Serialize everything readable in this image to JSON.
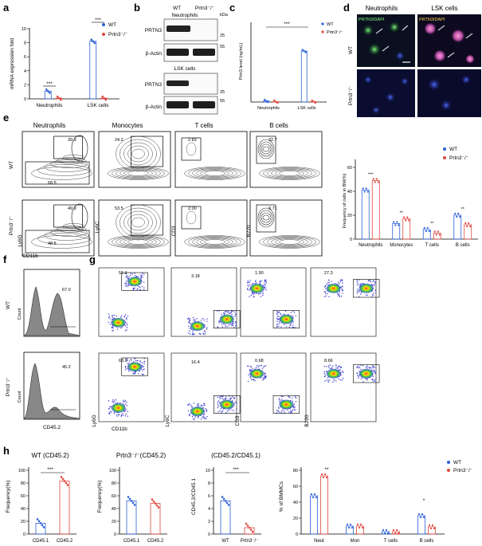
{
  "panels": {
    "a": {
      "label": "a",
      "ylabel": "mRNA expression fold",
      "yticks": [
        "0",
        "2",
        "4",
        "6",
        "8",
        "10"
      ],
      "categories": [
        "Neutrophils",
        "LSK cells"
      ],
      "legend": [
        "WT",
        "Prtn3⁻/⁻"
      ],
      "sig": [
        "***",
        "***"
      ]
    },
    "b": {
      "label": "b",
      "col_wt": "WT",
      "col_ko": "Prtn3⁻/⁻",
      "kda": "kDa",
      "group1": "Neutrophils",
      "group2": "LSK cells",
      "rows": [
        "PRTN3",
        "β-Actin",
        "PRTN3",
        "β-Actin"
      ],
      "markers": [
        "25",
        "55",
        "25",
        "55"
      ]
    },
    "c": {
      "label": "c",
      "ylabel": "Prtn3 level (ng/mL)",
      "categories": [
        "Neutrophils",
        "LSK cells"
      ],
      "legend": [
        "WT",
        "Prtn3⁻/⁻"
      ],
      "sig": "***"
    },
    "d": {
      "label": "d",
      "col1": "Neutrophils",
      "col2": "LSK cells",
      "row1": "WT",
      "row2": "Prtn3⁻/⁻",
      "stain1": "PRTN3/DAPI",
      "stain2": "PRTN3/DAPI"
    },
    "e": {
      "label": "e",
      "cols": [
        "Neutrophils",
        "Monocytes",
        "T cells",
        "B cells"
      ],
      "rows": [
        "WT",
        "Prtn3⁻/⁻"
      ],
      "wt_gates": [
        "39.9",
        "68.5",
        "24.2",
        "2.83",
        "32.7"
      ],
      "ko_gates": [
        "49.9",
        "48.5",
        "53.5",
        "2.00",
        "9.71"
      ],
      "ylabels": [
        "Ly6G",
        "Ly6C",
        "CD3",
        "B220"
      ],
      "xlabel": "CD11b",
      "bar": {
        "ylabel": "Frequency of cells in BM(%)",
        "yticks": [
          "0",
          "20",
          "40",
          "60"
        ],
        "categories": [
          "Neutrophils",
          "Monocytes",
          "T cells",
          "B cells"
        ],
        "legend": [
          "WT",
          "Prtn3⁻/⁻"
        ],
        "sig": [
          "***",
          "**",
          "**",
          "**"
        ]
      }
    },
    "f": {
      "label": "f",
      "rows": [
        "WT",
        "Prtn3⁻/⁻"
      ],
      "values": [
        "67.0",
        "45.2"
      ],
      "ylabel": "Count",
      "xlabel": "CD45.2"
    },
    "g": {
      "label": "g",
      "wt_gates": [
        "51.1",
        "3.18",
        "1.90",
        "27.3"
      ],
      "ko_gates": [
        "68.9",
        "16.4",
        "0.68",
        "8.66"
      ],
      "ylabels": [
        "Ly6G",
        "Ly6C",
        "CD3",
        "B220"
      ],
      "xlabel": "CD11b"
    },
    "h": {
      "label": "h",
      "p1_title": "WT  (CD45.2)",
      "p2_title": "Prtn3⁻/⁻(CD45.2)",
      "p3_title": "(CD45.2/CD45.1)",
      "p1_ylabel": "Frequency(%)",
      "p2_ylabel": "Frequency(%)",
      "p3_ylabel": "CD45.2/CD45.1",
      "p4_ylabel": "% of BMMCs",
      "yticks_100": [
        "0",
        "20",
        "40",
        "60",
        "80",
        "100"
      ],
      "yticks_10": [
        "0",
        "2",
        "4",
        "6",
        "8",
        "10"
      ],
      "yticks_80": [
        "0",
        "20",
        "40",
        "60",
        "80"
      ],
      "p1_cats": [
        "CD45.1",
        "CD45.2"
      ],
      "p2_cats": [
        "CD45.1",
        "CD45.2"
      ],
      "p3_cats": [
        "WT",
        "Prtn3⁻/⁻"
      ],
      "p4_cats": [
        "Neut",
        "Mon",
        "T cells",
        "B cells"
      ],
      "legend": [
        "WT",
        "Prtn3⁻/⁻"
      ],
      "sig1": "***",
      "sig3": "***",
      "sig4": [
        "**",
        "*"
      ]
    }
  },
  "chart_data": [
    {
      "type": "bar",
      "title": "",
      "ylabel": "mRNA expression fold",
      "ylim": [
        0,
        10
      ],
      "categories": [
        "Neutrophils",
        "LSK cells"
      ],
      "series": [
        {
          "name": "WT",
          "values": [
            1.1,
            8.2
          ]
        },
        {
          "name": "Prtn3⁻/⁻",
          "values": [
            0.1,
            0.1
          ]
        }
      ]
    },
    {
      "type": "bar",
      "ylabel": "Prtn3 level (ng/mL)",
      "ylim": [
        0,
        10
      ],
      "categories": [
        "Neutrophils",
        "LSK cells"
      ],
      "series": [
        {
          "name": "WT",
          "values": [
            0.15,
            7.1
          ]
        },
        {
          "name": "Prtn3⁻/⁻",
          "values": [
            0.05,
            0.05
          ]
        }
      ]
    },
    {
      "type": "bar",
      "ylabel": "Frequency of cells in BM(%)",
      "ylim": [
        0,
        60
      ],
      "categories": [
        "Neutrophils",
        "Monocytes",
        "T cells",
        "B cells"
      ],
      "series": [
        {
          "name": "WT",
          "values": [
            41,
            13,
            8,
            20
          ]
        },
        {
          "name": "Prtn3⁻/⁻",
          "values": [
            49,
            17,
            5,
            12
          ]
        }
      ]
    },
    {
      "type": "bar",
      "ylabel": "Frequency(%)",
      "ylim": [
        0,
        100
      ],
      "categories": [
        "CD45.1",
        "CD45.2"
      ],
      "series": [
        {
          "values": [
            17,
            83
          ]
        }
      ]
    },
    {
      "type": "bar",
      "ylabel": "Frequency(%)",
      "ylim": [
        0,
        100
      ],
      "categories": [
        "CD45.1",
        "CD45.2"
      ],
      "series": [
        {
          "values": [
            52,
            48
          ]
        }
      ]
    },
    {
      "type": "bar",
      "ylabel": "CD45.2/CD45.1",
      "ylim": [
        0,
        10
      ],
      "categories": [
        "WT",
        "Prtn3⁻/⁻"
      ],
      "series": [
        {
          "values": [
            5.2,
            1.0
          ]
        }
      ]
    },
    {
      "type": "bar",
      "ylabel": "% of BMMCs",
      "ylim": [
        0,
        80
      ],
      "categories": [
        "Neut",
        "Mon",
        "T cells",
        "B cells"
      ],
      "series": [
        {
          "name": "WT",
          "values": [
            48,
            10,
            3,
            23
          ]
        },
        {
          "name": "Prtn3⁻/⁻",
          "values": [
            73,
            10,
            3,
            9
          ]
        }
      ]
    }
  ]
}
